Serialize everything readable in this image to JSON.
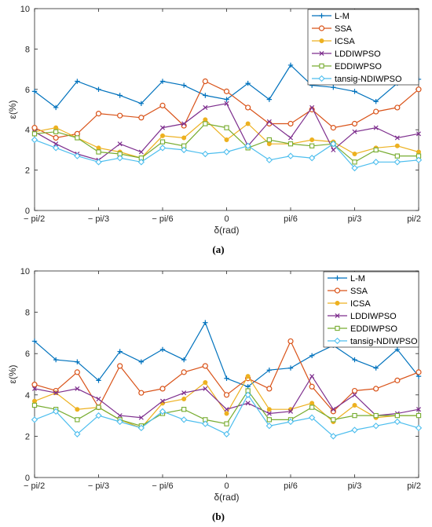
{
  "figure": {
    "panel_labels": [
      "(a)",
      "(b)"
    ]
  },
  "chart_data": [
    {
      "type": "line",
      "xlabel": "δ(rad)",
      "ylabel": "ε(%)",
      "ylim": [
        0,
        10
      ],
      "yticks": [
        0,
        2,
        4,
        6,
        8,
        10
      ],
      "xlim": [
        -1.5708,
        1.5708
      ],
      "xtick_values": [
        -1.5708,
        -1.0472,
        -0.5236,
        0,
        0.5236,
        1.0472,
        1.5708
      ],
      "xtick_labels": [
        "− pi/2",
        "− pi/3",
        "− pi/6",
        "0",
        "pi/6",
        "pi/3",
        "pi/2"
      ],
      "legend_position": "top-right",
      "x": [
        -1.5708,
        -1.3963,
        -1.2217,
        -1.0472,
        -0.8727,
        -0.6981,
        -0.5236,
        -0.3491,
        -0.1745,
        0,
        0.1745,
        0.3491,
        0.5236,
        0.6981,
        0.8727,
        1.0472,
        1.2217,
        1.3963,
        1.5708
      ],
      "series": [
        {
          "name": "L-M",
          "color": "#0072BD",
          "marker": "plus",
          "values": [
            5.9,
            5.1,
            6.4,
            6.0,
            5.7,
            5.3,
            6.4,
            6.2,
            5.7,
            5.5,
            6.3,
            5.5,
            7.2,
            6.2,
            6.1,
            5.9,
            5.4,
            6.3,
            6.5
          ]
        },
        {
          "name": "SSA",
          "color": "#D95319",
          "marker": "circle",
          "values": [
            4.1,
            3.6,
            3.8,
            4.8,
            4.7,
            4.6,
            5.2,
            4.2,
            6.4,
            5.9,
            5.1,
            4.3,
            4.3,
            5.0,
            4.1,
            4.3,
            4.9,
            5.1,
            6.0
          ]
        },
        {
          "name": "ICSA",
          "color": "#EDB120",
          "marker": "dot",
          "values": [
            3.9,
            4.1,
            3.6,
            3.1,
            2.9,
            2.6,
            3.7,
            3.6,
            4.5,
            3.5,
            4.3,
            3.3,
            3.3,
            3.5,
            3.4,
            2.8,
            3.1,
            3.2,
            2.9
          ]
        },
        {
          "name": "LDDIWPSO",
          "color": "#7E2F8E",
          "marker": "x",
          "values": [
            3.9,
            3.3,
            2.8,
            2.5,
            3.3,
            2.9,
            4.1,
            4.3,
            5.1,
            5.3,
            3.2,
            4.4,
            3.6,
            5.1,
            3.0,
            3.9,
            4.1,
            3.6,
            3.8
          ]
        },
        {
          "name": "EDDIWPSO",
          "color": "#77AC30",
          "marker": "square",
          "values": [
            3.8,
            3.9,
            3.6,
            2.9,
            2.8,
            2.6,
            3.4,
            3.2,
            4.3,
            4.1,
            3.1,
            3.5,
            3.3,
            3.2,
            3.3,
            2.4,
            3.0,
            2.7,
            2.7
          ]
        },
        {
          "name": "tansig-NDIWPSO",
          "color": "#4DBEEE",
          "marker": "diamond",
          "values": [
            3.5,
            3.1,
            2.7,
            2.4,
            2.6,
            2.4,
            3.1,
            3.0,
            2.8,
            2.9,
            3.2,
            2.5,
            2.7,
            2.6,
            3.3,
            2.1,
            2.4,
            2.4,
            2.5
          ]
        }
      ]
    },
    {
      "type": "line",
      "xlabel": "δ(rad)",
      "ylabel": "ε(%)",
      "ylim": [
        0,
        10
      ],
      "yticks": [
        0,
        2,
        4,
        6,
        8,
        10
      ],
      "xlim": [
        -1.5708,
        1.5708
      ],
      "xtick_values": [
        -1.5708,
        -1.0472,
        -0.5236,
        0,
        0.5236,
        1.0472,
        1.5708
      ],
      "xtick_labels": [
        "− pi/2",
        "− pi/3",
        "− pi/6",
        "0",
        "pi/6",
        "pi/3",
        "pi/2"
      ],
      "legend_position": "top-right",
      "x": [
        -1.5708,
        -1.3963,
        -1.2217,
        -1.0472,
        -0.8727,
        -0.6981,
        -0.5236,
        -0.3491,
        -0.1745,
        0,
        0.1745,
        0.3491,
        0.5236,
        0.6981,
        0.8727,
        1.0472,
        1.2217,
        1.3963,
        1.5708
      ],
      "series": [
        {
          "name": "L-M",
          "color": "#0072BD",
          "marker": "plus",
          "values": [
            6.6,
            5.7,
            5.6,
            4.7,
            6.1,
            5.6,
            6.2,
            5.7,
            7.5,
            4.8,
            4.4,
            5.2,
            5.3,
            5.9,
            6.4,
            5.7,
            5.3,
            6.2,
            4.9
          ]
        },
        {
          "name": "SSA",
          "color": "#D95319",
          "marker": "circle",
          "values": [
            4.5,
            4.2,
            5.1,
            3.4,
            5.4,
            4.1,
            4.3,
            5.1,
            5.4,
            4.0,
            4.8,
            4.3,
            6.6,
            4.4,
            3.2,
            4.2,
            4.3,
            4.7,
            5.1
          ]
        },
        {
          "name": "ICSA",
          "color": "#EDB120",
          "marker": "dot",
          "values": [
            3.7,
            4.1,
            3.3,
            3.4,
            2.8,
            2.4,
            3.6,
            3.8,
            4.6,
            3.1,
            4.9,
            3.3,
            3.3,
            3.6,
            2.7,
            3.5,
            2.9,
            3.0,
            3.0
          ]
        },
        {
          "name": "LDDIWPSO",
          "color": "#7E2F8E",
          "marker": "x",
          "values": [
            4.3,
            4.1,
            4.3,
            3.8,
            3.0,
            2.9,
            3.7,
            4.1,
            4.3,
            3.3,
            3.6,
            3.1,
            3.2,
            4.9,
            3.3,
            4.0,
            3.0,
            3.1,
            3.3
          ]
        },
        {
          "name": "EDDIWPSO",
          "color": "#77AC30",
          "marker": "square",
          "values": [
            3.5,
            3.3,
            2.8,
            3.4,
            2.8,
            2.5,
            3.1,
            3.3,
            2.8,
            2.6,
            4.2,
            2.8,
            2.8,
            3.4,
            2.8,
            3.0,
            3.0,
            3.0,
            3.0
          ]
        },
        {
          "name": "tansig-NDIWPSO",
          "color": "#4DBEEE",
          "marker": "diamond",
          "values": [
            2.8,
            3.2,
            2.1,
            3.0,
            2.7,
            2.4,
            3.2,
            2.8,
            2.6,
            2.1,
            4.0,
            2.5,
            2.7,
            2.9,
            2.0,
            2.3,
            2.5,
            2.7,
            2.4
          ]
        }
      ]
    }
  ]
}
